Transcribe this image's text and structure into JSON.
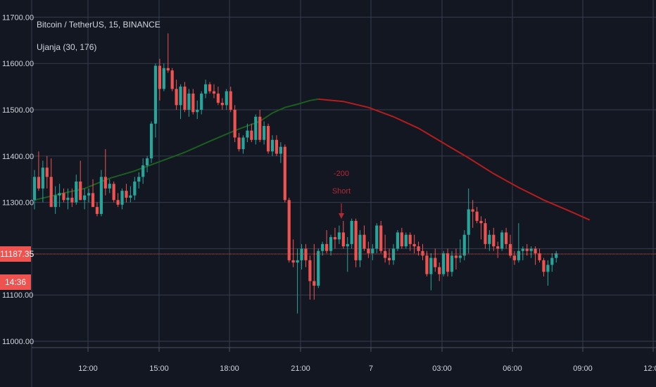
{
  "header": {
    "symbol_title": "Bitcoin / TetherUS, 15, BINANCE",
    "indicator_title": "Ujanja (30, 176)"
  },
  "price_axis": {
    "ticks": [
      "11700.00",
      "11600.00",
      "11500.00",
      "11400.00",
      "11300.00",
      "11100.00",
      "11000.00"
    ]
  },
  "time_axis": {
    "ticks": [
      "12:00",
      "15:00",
      "18:00",
      "21:00",
      "7",
      "03:00",
      "06:00",
      "09:00",
      "12:00"
    ]
  },
  "last_price": {
    "value": "11187.35",
    "time_left": "14:36",
    "color": "#ef5350"
  },
  "signal": {
    "label_1": "-200",
    "label_2": "Short",
    "color": "#b22833"
  },
  "colors": {
    "background": "#131722",
    "grid": "#363c4e",
    "text": "#d1d4dc",
    "up": "#26a69a",
    "down": "#ef5350",
    "ma_up": "#1b5e20",
    "ma_down": "#b71c1c"
  },
  "chart_data": {
    "type": "candlestick",
    "title": "Bitcoin / TetherUS, 15, BINANCE",
    "indicator": "Ujanja (30, 176)",
    "ylim": [
      10990,
      11715
    ],
    "grid": true,
    "candles": [
      [
        11305,
        11370,
        11285,
        11355
      ],
      [
        11355,
        11410,
        11325,
        11330
      ],
      [
        11330,
        11390,
        11300,
        11375
      ],
      [
        11375,
        11400,
        11330,
        11355
      ],
      [
        11355,
        11395,
        11290,
        11290
      ],
      [
        11290,
        11335,
        11275,
        11315
      ],
      [
        11315,
        11340,
        11290,
        11320
      ],
      [
        11320,
        11330,
        11300,
        11305
      ],
      [
        11305,
        11330,
        11285,
        11310
      ],
      [
        11310,
        11330,
        11290,
        11300
      ],
      [
        11300,
        11360,
        11295,
        11345
      ],
      [
        11345,
        11390,
        11305,
        11305
      ],
      [
        11305,
        11330,
        11285,
        11315
      ],
      [
        11315,
        11330,
        11300,
        11320
      ],
      [
        11320,
        11350,
        11290,
        11290
      ],
      [
        11290,
        11300,
        11270,
        11275
      ],
      [
        11275,
        11370,
        11270,
        11355
      ],
      [
        11355,
        11415,
        11315,
        11330
      ],
      [
        11330,
        11350,
        11320,
        11340
      ],
      [
        11340,
        11345,
        11300,
        11305
      ],
      [
        11305,
        11320,
        11290,
        11295
      ],
      [
        11295,
        11330,
        11285,
        11325
      ],
      [
        11325,
        11340,
        11300,
        11310
      ],
      [
        11310,
        11335,
        11300,
        11315
      ],
      [
        11315,
        11355,
        11305,
        11345
      ],
      [
        11345,
        11365,
        11330,
        11355
      ],
      [
        11355,
        11395,
        11340,
        11380
      ],
      [
        11380,
        11400,
        11365,
        11395
      ],
      [
        11395,
        11475,
        11385,
        11470
      ],
      [
        11470,
        11600,
        11440,
        11595
      ],
      [
        11595,
        11610,
        11520,
        11545
      ],
      [
        11545,
        11600,
        11540,
        11590
      ],
      [
        11590,
        11665,
        11580,
        11585
      ],
      [
        11585,
        11590,
        11540,
        11545
      ],
      [
        11545,
        11565,
        11500,
        11510
      ],
      [
        11510,
        11555,
        11480,
        11550
      ],
      [
        11550,
        11560,
        11495,
        11500
      ],
      [
        11500,
        11545,
        11485,
        11535
      ],
      [
        11535,
        11545,
        11490,
        11495
      ],
      [
        11495,
        11520,
        11480,
        11500
      ],
      [
        11500,
        11540,
        11490,
        11535
      ],
      [
        11535,
        11565,
        11525,
        11555
      ],
      [
        11555,
        11560,
        11535,
        11540
      ],
      [
        11540,
        11555,
        11525,
        11535
      ],
      [
        11535,
        11550,
        11510,
        11515
      ],
      [
        11515,
        11525,
        11500,
        11510
      ],
      [
        11510,
        11545,
        11500,
        11540
      ],
      [
        11540,
        11550,
        11495,
        11500
      ],
      [
        11500,
        11510,
        11430,
        11440
      ],
      [
        11440,
        11450,
        11410,
        11415
      ],
      [
        11415,
        11445,
        11405,
        11440
      ],
      [
        11440,
        11470,
        11430,
        11455
      ],
      [
        11455,
        11470,
        11430,
        11435
      ],
      [
        11435,
        11490,
        11425,
        11485
      ],
      [
        11485,
        11500,
        11430,
        11435
      ],
      [
        11435,
        11475,
        11425,
        11465
      ],
      [
        11465,
        11470,
        11405,
        11410
      ],
      [
        11410,
        11445,
        11400,
        11435
      ],
      [
        11435,
        11445,
        11400,
        11405
      ],
      [
        11405,
        11430,
        11385,
        11420
      ],
      [
        11420,
        11425,
        11300,
        11305
      ],
      [
        11305,
        11310,
        11170,
        11175
      ],
      [
        11175,
        11220,
        11160,
        11170
      ],
      [
        11170,
        11200,
        11060,
        11175
      ],
      [
        11175,
        11210,
        11155,
        11200
      ],
      [
        11200,
        11210,
        11160,
        11175
      ],
      [
        11175,
        11185,
        11090,
        11130
      ],
      [
        11130,
        11210,
        11090,
        11120
      ],
      [
        11120,
        11200,
        11115,
        11195
      ],
      [
        11195,
        11215,
        11185,
        11210
      ],
      [
        11210,
        11240,
        11190,
        11195
      ],
      [
        11195,
        11230,
        11185,
        11225
      ],
      [
        11225,
        11245,
        11200,
        11220
      ],
      [
        11220,
        11250,
        11210,
        11235
      ],
      [
        11235,
        11260,
        11200,
        11205
      ],
      [
        11205,
        11225,
        11150,
        11210
      ],
      [
        11210,
        11265,
        11200,
        11260
      ],
      [
        11260,
        11265,
        11160,
        11175
      ],
      [
        11175,
        11240,
        11160,
        11230
      ],
      [
        11230,
        11250,
        11195,
        11200
      ],
      [
        11200,
        11215,
        11180,
        11190
      ],
      [
        11190,
        11210,
        11175,
        11200
      ],
      [
        11200,
        11255,
        11190,
        11250
      ],
      [
        11250,
        11260,
        11190,
        11195
      ],
      [
        11195,
        11230,
        11170,
        11180
      ],
      [
        11180,
        11200,
        11165,
        11175
      ],
      [
        11175,
        11210,
        11165,
        11200
      ],
      [
        11200,
        11240,
        11195,
        11235
      ],
      [
        11235,
        11245,
        11200,
        11205
      ],
      [
        11205,
        11235,
        11200,
        11230
      ],
      [
        11230,
        11235,
        11195,
        11210
      ],
      [
        11210,
        11230,
        11190,
        11205
      ],
      [
        11205,
        11215,
        11185,
        11195
      ],
      [
        11195,
        11210,
        11175,
        11185
      ],
      [
        11185,
        11195,
        11140,
        11145
      ],
      [
        11145,
        11190,
        11110,
        11180
      ],
      [
        11180,
        11200,
        11150,
        11160
      ],
      [
        11160,
        11170,
        11130,
        11145
      ],
      [
        11145,
        11195,
        11140,
        11190
      ],
      [
        11190,
        11200,
        11140,
        11150
      ],
      [
        11150,
        11195,
        11140,
        11185
      ],
      [
        11185,
        11200,
        11155,
        11180
      ],
      [
        11180,
        11220,
        11170,
        11185
      ],
      [
        11185,
        11240,
        11175,
        11230
      ],
      [
        11230,
        11330,
        11190,
        11285
      ],
      [
        11285,
        11305,
        11245,
        11280
      ],
      [
        11280,
        11290,
        11255,
        11260
      ],
      [
        11260,
        11270,
        11220,
        11255
      ],
      [
        11255,
        11265,
        11200,
        11210
      ],
      [
        11210,
        11240,
        11195,
        11230
      ],
      [
        11230,
        11245,
        11195,
        11205
      ],
      [
        11205,
        11215,
        11180,
        11200
      ],
      [
        11200,
        11240,
        11195,
        11235
      ],
      [
        11235,
        11245,
        11200,
        11210
      ],
      [
        11210,
        11230,
        11180,
        11185
      ],
      [
        11185,
        11195,
        11165,
        11175
      ],
      [
        11175,
        11255,
        11170,
        11195
      ],
      [
        11195,
        11205,
        11175,
        11200
      ],
      [
        11200,
        11210,
        11185,
        11195
      ],
      [
        11195,
        11205,
        11180,
        11200
      ],
      [
        11200,
        11205,
        11165,
        11190
      ],
      [
        11190,
        11200,
        11170,
        11175
      ],
      [
        11175,
        11180,
        11140,
        11150
      ],
      [
        11150,
        11175,
        11120,
        11165
      ],
      [
        11165,
        11190,
        11150,
        11180
      ],
      [
        11180,
        11195,
        11170,
        11190
      ]
    ],
    "ma": {
      "name": "Ujanja (30, 176)",
      "up_points": [
        [
          0,
          11305
        ],
        [
          6,
          11318
        ],
        [
          12,
          11330
        ],
        [
          18,
          11352
        ],
        [
          24,
          11368
        ],
        [
          30,
          11388
        ],
        [
          36,
          11408
        ],
        [
          42,
          11432
        ],
        [
          48,
          11455
        ],
        [
          54,
          11475
        ],
        [
          57,
          11493
        ],
        [
          60,
          11505
        ],
        [
          63,
          11512
        ],
        [
          66,
          11520
        ],
        [
          68,
          11523
        ]
      ],
      "down_points": [
        [
          68,
          11523
        ],
        [
          74,
          11518
        ],
        [
          80,
          11505
        ],
        [
          86,
          11485
        ],
        [
          92,
          11460
        ],
        [
          98,
          11428
        ],
        [
          104,
          11396
        ],
        [
          110,
          11362
        ],
        [
          116,
          11332
        ],
        [
          122,
          11305
        ],
        [
          128,
          11282
        ],
        [
          133,
          11262
        ]
      ]
    },
    "annotations": [
      {
        "index": 71,
        "text": [
          "-200",
          "Short"
        ],
        "price": 11240
      }
    ]
  }
}
